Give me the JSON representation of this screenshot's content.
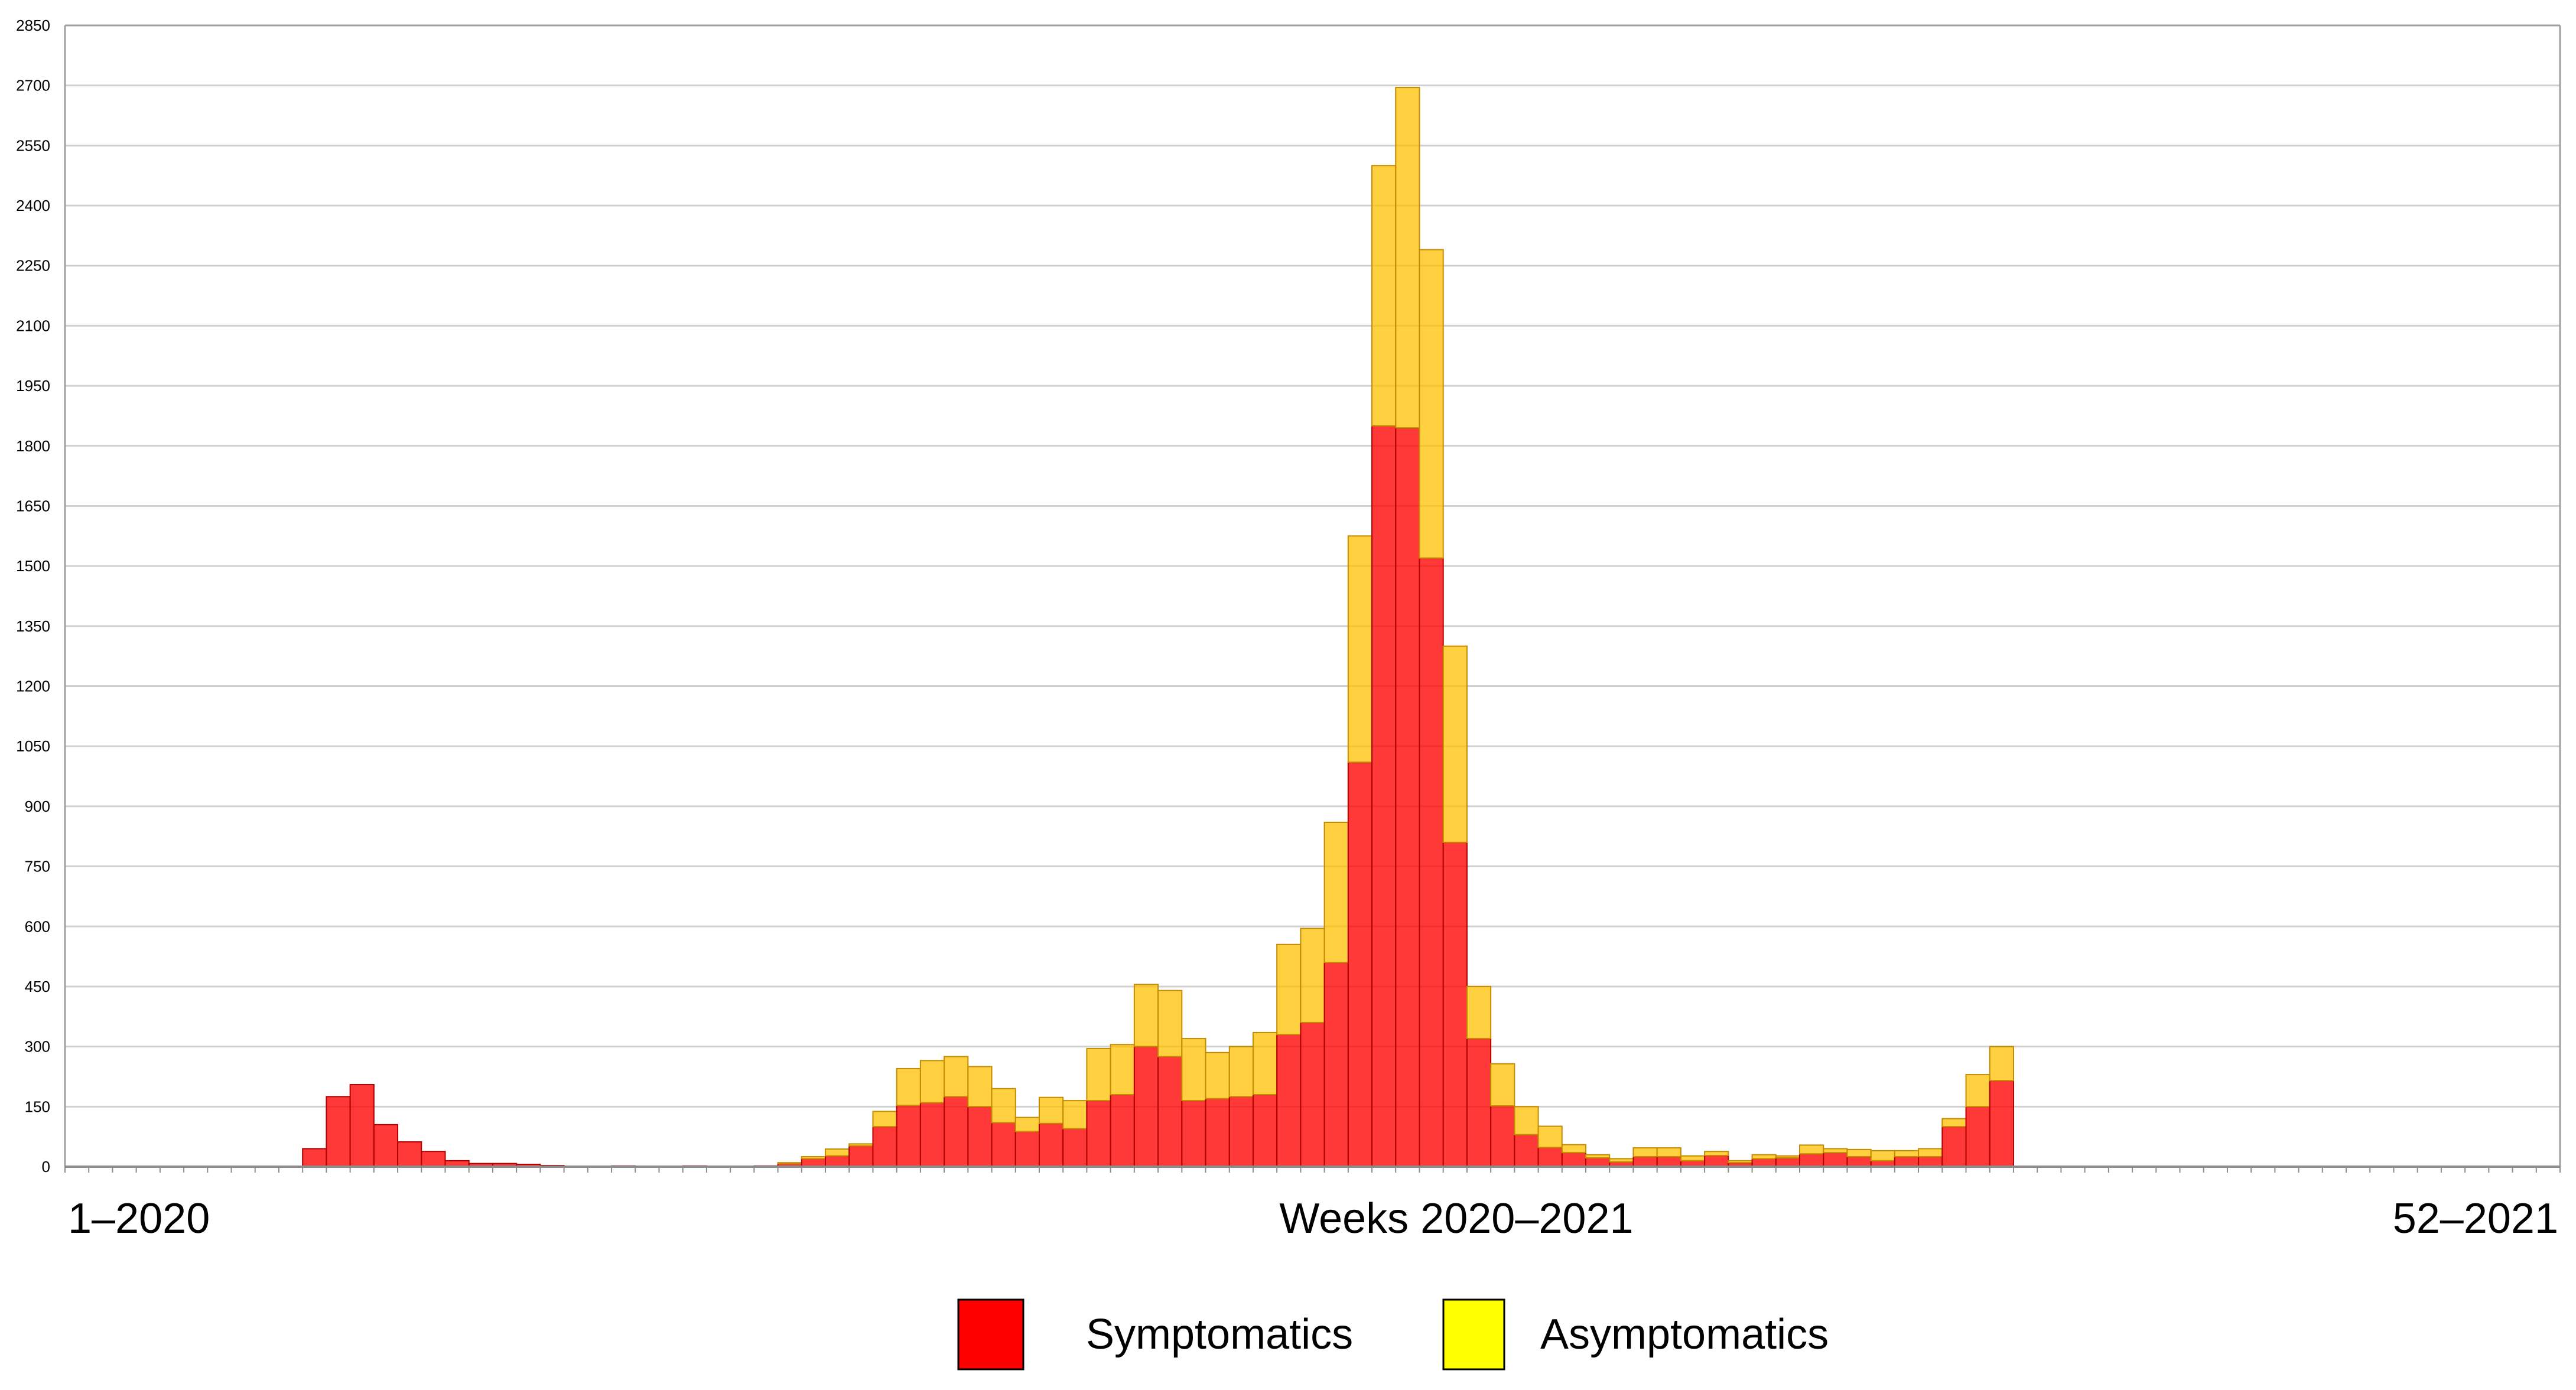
{
  "chart_data": {
    "type": "bar",
    "stacked": true,
    "title": "",
    "xlabel": "Weeks 2020–2021",
    "x_start_label": "1–2020",
    "x_end_label": "52–2021",
    "ylabel": "",
    "ylim": [
      0,
      2850
    ],
    "yticks": [
      0,
      150,
      300,
      450,
      600,
      750,
      900,
      1050,
      1200,
      1350,
      1500,
      1650,
      1800,
      1950,
      2100,
      2250,
      2400,
      2550,
      2700,
      2850
    ],
    "grid": true,
    "legend_position": "bottom-center",
    "categories": [
      "1",
      "2",
      "3",
      "4",
      "5",
      "6",
      "7",
      "8",
      "9",
      "10",
      "11",
      "12",
      "13",
      "14",
      "15",
      "16",
      "17",
      "18",
      "19",
      "20",
      "21",
      "22",
      "23",
      "24",
      "25",
      "26",
      "27",
      "28",
      "29",
      "30",
      "31",
      "32",
      "33",
      "34",
      "35",
      "36",
      "37",
      "38",
      "39",
      "40",
      "41",
      "42",
      "43",
      "44",
      "45",
      "46",
      "47",
      "48",
      "49",
      "50",
      "51",
      "52",
      "53",
      "54",
      "55",
      "56",
      "57",
      "58",
      "59",
      "60",
      "61",
      "62",
      "63",
      "64",
      "65",
      "66",
      "67",
      "68",
      "69",
      "70",
      "71",
      "72",
      "73",
      "74",
      "75",
      "76",
      "77",
      "78",
      "79",
      "80",
      "81",
      "82",
      "83",
      "84",
      "85",
      "86",
      "87",
      "88",
      "89",
      "90",
      "91",
      "92",
      "93",
      "94",
      "95",
      "96",
      "97",
      "98",
      "99",
      "100",
      "101",
      "102",
      "103",
      "104",
      "105"
    ],
    "series": [
      {
        "name": "Symptomatics",
        "color": "#ff0000",
        "values": [
          0,
          0,
          0,
          0,
          0,
          0,
          0,
          0,
          0,
          1,
          45,
          175,
          205,
          105,
          62,
          38,
          15,
          8,
          8,
          6,
          3,
          1,
          1,
          2,
          1,
          1,
          2,
          1,
          1,
          2,
          8,
          20,
          27,
          52,
          100,
          153,
          160,
          175,
          150,
          110,
          88,
          108,
          95,
          165,
          180,
          300,
          275,
          165,
          170,
          175,
          180,
          330,
          360,
          510,
          1010,
          1850,
          1845,
          1520,
          810,
          320,
          152,
          80,
          48,
          35,
          22,
          12,
          25,
          25,
          15,
          28,
          10,
          20,
          22,
          32,
          35,
          25,
          15,
          25,
          25,
          100,
          150,
          215,
          0,
          0,
          0,
          0,
          0,
          0,
          0,
          0,
          0,
          0,
          0,
          0,
          0,
          0,
          0,
          0,
          0,
          0,
          0,
          0,
          0,
          0,
          0
        ]
      },
      {
        "name": "Asymptomatics",
        "color": "#ffc000",
        "values": [
          0,
          0,
          0,
          0,
          0,
          0,
          0,
          0,
          0,
          0,
          0,
          0,
          0,
          0,
          0,
          0,
          0,
          0,
          0,
          0,
          0,
          0,
          0,
          0,
          0,
          0,
          0,
          0,
          0,
          0,
          2,
          5,
          17,
          5,
          38,
          92,
          105,
          100,
          100,
          85,
          35,
          65,
          70,
          130,
          125,
          155,
          165,
          155,
          115,
          125,
          155,
          225,
          235,
          350,
          565,
          650,
          850,
          770,
          490,
          130,
          105,
          70,
          53,
          20,
          8,
          8,
          22,
          22,
          12,
          10,
          5,
          10,
          5,
          22,
          10,
          18,
          25,
          15,
          20,
          20,
          80,
          85,
          0,
          0,
          0,
          0,
          0,
          0,
          0,
          0,
          0,
          0,
          0,
          0,
          0,
          0,
          0,
          0,
          0,
          0,
          0,
          0,
          0,
          0,
          0
        ]
      }
    ]
  },
  "legend": {
    "items": [
      {
        "label": "Symptomatics",
        "color": "#ff0000"
      },
      {
        "label": "Asymptomatics",
        "color": "#ffff00"
      }
    ]
  }
}
